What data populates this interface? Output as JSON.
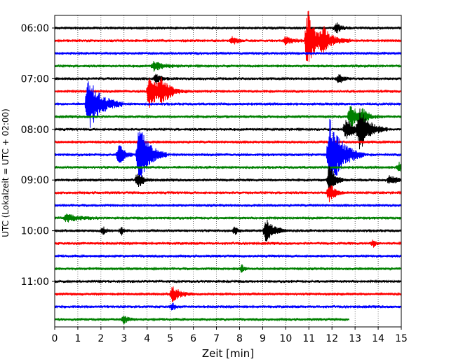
{
  "chart_data": {
    "type": "line",
    "title": "",
    "xlabel": "Zeit  [min]",
    "ylabel": "UTC (Lokalzeit = UTC + 02:00)",
    "xlim": [
      0,
      15
    ],
    "x_ticks": [
      0,
      1,
      2,
      3,
      4,
      5,
      6,
      7,
      8,
      9,
      10,
      11,
      12,
      13,
      14,
      15
    ],
    "y_tick_labels": [
      "06:00",
      "07:00",
      "08:00",
      "09:00",
      "10:00",
      "11:00"
    ],
    "grid": "vertical dotted lines at each minute",
    "legend": "none",
    "trace_interval_min": 15,
    "trace_color_cycle": [
      "#000000",
      "#ff0000",
      "#0000ff",
      "#008000"
    ],
    "traces": [
      {
        "start": "06:00",
        "color": "#000000",
        "last_min": 15,
        "events": [
          {
            "t": 12.2,
            "amp": 0.4,
            "dur": 0.2
          }
        ]
      },
      {
        "start": "06:15",
        "color": "#ff0000",
        "last_min": 15,
        "events": [
          {
            "t": 7.7,
            "amp": 0.3,
            "dur": 0.2
          },
          {
            "t": 10.0,
            "amp": 0.3,
            "dur": 0.3
          },
          {
            "t": 10.95,
            "amp": 2.6,
            "dur": 0.3
          },
          {
            "t": 11.6,
            "amp": 1.0,
            "dur": 0.4
          }
        ]
      },
      {
        "start": "06:30",
        "color": "#0000ff",
        "last_min": 15,
        "events": []
      },
      {
        "start": "06:45",
        "color": "#008000",
        "last_min": 15,
        "events": [
          {
            "t": 4.3,
            "amp": 0.4,
            "dur": 0.4
          }
        ]
      },
      {
        "start": "07:00",
        "color": "#000000",
        "last_min": 15,
        "events": [
          {
            "t": 4.4,
            "amp": 0.4,
            "dur": 0.2
          },
          {
            "t": 12.3,
            "amp": 0.4,
            "dur": 0.2
          }
        ]
      },
      {
        "start": "07:15",
        "color": "#ff0000",
        "last_min": 15,
        "events": [
          {
            "t": 4.1,
            "amp": 1.5,
            "dur": 0.35
          },
          {
            "t": 4.6,
            "amp": 0.8,
            "dur": 0.4
          }
        ]
      },
      {
        "start": "07:30",
        "color": "#0000ff",
        "last_min": 15,
        "events": [
          {
            "t": 1.45,
            "amp": 2.2,
            "dur": 0.5
          }
        ]
      },
      {
        "start": "07:45",
        "color": "#008000",
        "last_min": 15,
        "events": [
          {
            "t": 12.8,
            "amp": 1.0,
            "dur": 0.3
          },
          {
            "t": 13.3,
            "amp": 0.5,
            "dur": 0.3
          }
        ]
      },
      {
        "start": "08:00",
        "color": "#000000",
        "last_min": 15,
        "events": [
          {
            "t": 12.6,
            "amp": 0.8,
            "dur": 0.4
          },
          {
            "t": 13.2,
            "amp": 1.6,
            "dur": 0.4
          }
        ]
      },
      {
        "start": "08:15",
        "color": "#ff0000",
        "last_min": 15,
        "events": []
      },
      {
        "start": "08:30",
        "color": "#0000ff",
        "last_min": 15,
        "events": [
          {
            "t": 2.8,
            "amp": 0.9,
            "dur": 0.2
          },
          {
            "t": 3.65,
            "amp": 2.6,
            "dur": 0.4
          },
          {
            "t": 11.9,
            "amp": 3.0,
            "dur": 0.5
          }
        ]
      },
      {
        "start": "08:45",
        "color": "#008000",
        "last_min": 15,
        "events": [
          {
            "t": 14.9,
            "amp": 0.4,
            "dur": 0.2
          }
        ]
      },
      {
        "start": "09:00",
        "color": "#000000",
        "last_min": 15,
        "events": [
          {
            "t": 3.6,
            "amp": 0.7,
            "dur": 0.2
          },
          {
            "t": 11.9,
            "amp": 1.4,
            "dur": 0.2
          },
          {
            "t": 14.5,
            "amp": 0.3,
            "dur": 0.4
          }
        ]
      },
      {
        "start": "09:15",
        "color": "#ff0000",
        "last_min": 15,
        "events": [
          {
            "t": 11.9,
            "amp": 0.8,
            "dur": 0.2
          }
        ]
      },
      {
        "start": "09:30",
        "color": "#0000ff",
        "last_min": 15,
        "events": []
      },
      {
        "start": "09:45",
        "color": "#008000",
        "last_min": 15,
        "events": [
          {
            "t": 0.5,
            "amp": 0.3,
            "dur": 0.5
          }
        ]
      },
      {
        "start": "10:00",
        "color": "#000000",
        "last_min": 15,
        "events": [
          {
            "t": 2.1,
            "amp": 0.3,
            "dur": 0.1
          },
          {
            "t": 2.9,
            "amp": 0.3,
            "dur": 0.1
          },
          {
            "t": 7.8,
            "amp": 0.3,
            "dur": 0.1
          },
          {
            "t": 9.15,
            "amp": 1.0,
            "dur": 0.3
          }
        ]
      },
      {
        "start": "10:15",
        "color": "#ff0000",
        "last_min": 15,
        "events": [
          {
            "t": 13.8,
            "amp": 0.3,
            "dur": 0.1
          }
        ]
      },
      {
        "start": "10:30",
        "color": "#0000ff",
        "last_min": 15,
        "events": []
      },
      {
        "start": "10:45",
        "color": "#008000",
        "last_min": 15,
        "events": [
          {
            "t": 8.1,
            "amp": 0.3,
            "dur": 0.1
          }
        ]
      },
      {
        "start": "11:00",
        "color": "#000000",
        "last_min": 15,
        "events": []
      },
      {
        "start": "11:15",
        "color": "#ff0000",
        "last_min": 15,
        "events": [
          {
            "t": 5.1,
            "amp": 0.6,
            "dur": 0.3
          }
        ]
      },
      {
        "start": "11:30",
        "color": "#0000ff",
        "last_min": 15,
        "events": [
          {
            "t": 5.1,
            "amp": 0.3,
            "dur": 0.1
          }
        ]
      },
      {
        "start": "11:45",
        "color": "#008000",
        "last_min": 12.75,
        "events": [
          {
            "t": 3.0,
            "amp": 0.3,
            "dur": 0.2
          }
        ]
      }
    ]
  }
}
